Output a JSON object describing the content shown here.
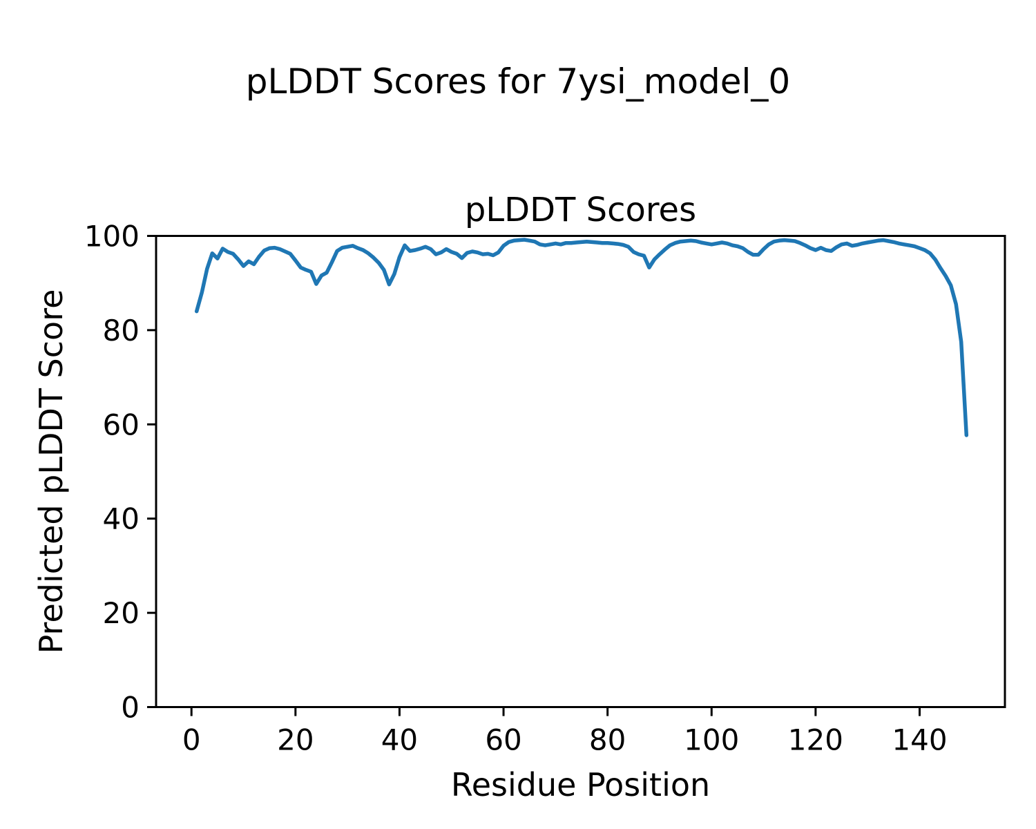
{
  "figure": {
    "suptitle": "pLDDT Scores for 7ysi_model_0",
    "background_color": "#ffffff",
    "text_color": "#000000"
  },
  "chart_data": {
    "type": "line",
    "title": "pLDDT Scores",
    "xlabel": "Residue Position",
    "ylabel": "Predicted pLDDT Score",
    "xlim": [
      -6.8,
      156.4
    ],
    "ylim": [
      0,
      100
    ],
    "xticks": [
      0,
      20,
      40,
      60,
      80,
      100,
      120,
      140
    ],
    "yticks": [
      0,
      20,
      40,
      60,
      80,
      100
    ],
    "grid": false,
    "legend_position": "none",
    "line_color": "#1f77b4",
    "line_width": 5.5,
    "series": [
      {
        "name": "pLDDT",
        "x": [
          1,
          2,
          3,
          4,
          5,
          6,
          7,
          8,
          9,
          10,
          11,
          12,
          13,
          14,
          15,
          16,
          17,
          18,
          19,
          20,
          21,
          22,
          23,
          24,
          25,
          26,
          27,
          28,
          29,
          30,
          31,
          32,
          33,
          34,
          35,
          36,
          37,
          38,
          39,
          40,
          41,
          42,
          43,
          44,
          45,
          46,
          47,
          48,
          49,
          50,
          51,
          52,
          53,
          54,
          55,
          56,
          57,
          58,
          59,
          60,
          61,
          62,
          63,
          64,
          65,
          66,
          67,
          68,
          69,
          70,
          71,
          72,
          73,
          74,
          75,
          76,
          77,
          78,
          79,
          80,
          81,
          82,
          83,
          84,
          85,
          86,
          87,
          88,
          89,
          90,
          91,
          92,
          93,
          94,
          95,
          96,
          97,
          98,
          99,
          100,
          101,
          102,
          103,
          104,
          105,
          106,
          107,
          108,
          109,
          110,
          111,
          112,
          113,
          114,
          115,
          116,
          117,
          118,
          119,
          120,
          121,
          122,
          123,
          124,
          125,
          126,
          127,
          128,
          129,
          130,
          131,
          132,
          133,
          134,
          135,
          136,
          137,
          138,
          139,
          140,
          141,
          142,
          143,
          144,
          145,
          146,
          147,
          148,
          149
        ],
        "y": [
          84.0,
          88.0,
          93.0,
          96.3,
          95.2,
          97.3,
          96.6,
          96.2,
          95.0,
          93.6,
          94.6,
          94.0,
          95.6,
          96.9,
          97.4,
          97.5,
          97.2,
          96.7,
          96.2,
          94.8,
          93.3,
          92.8,
          92.4,
          89.8,
          91.6,
          92.2,
          94.4,
          96.8,
          97.5,
          97.7,
          97.9,
          97.4,
          97.0,
          96.3,
          95.4,
          94.3,
          92.8,
          89.7,
          91.9,
          95.5,
          98.0,
          96.8,
          97.0,
          97.3,
          97.7,
          97.2,
          96.1,
          96.5,
          97.2,
          96.6,
          96.2,
          95.3,
          96.4,
          96.7,
          96.5,
          96.1,
          96.2,
          95.9,
          96.5,
          97.9,
          98.7,
          99.0,
          99.1,
          99.2,
          99.0,
          98.8,
          98.2,
          98.0,
          98.2,
          98.4,
          98.2,
          98.5,
          98.5,
          98.6,
          98.7,
          98.8,
          98.7,
          98.6,
          98.5,
          98.5,
          98.4,
          98.3,
          98.1,
          97.7,
          96.6,
          96.1,
          95.8,
          93.3,
          95.0,
          96.1,
          97.1,
          98.0,
          98.5,
          98.8,
          98.9,
          99.0,
          98.9,
          98.6,
          98.4,
          98.2,
          98.4,
          98.6,
          98.4,
          98.0,
          97.8,
          97.4,
          96.6,
          96.0,
          96.0,
          97.2,
          98.2,
          98.8,
          99.0,
          99.1,
          99.0,
          98.9,
          98.5,
          98.0,
          97.4,
          97.0,
          97.5,
          97.0,
          96.8,
          97.6,
          98.2,
          98.4,
          97.9,
          98.1,
          98.4,
          98.6,
          98.8,
          99.0,
          99.1,
          98.9,
          98.7,
          98.4,
          98.2,
          98.0,
          97.8,
          97.4,
          97.0,
          96.3,
          95.0,
          93.2,
          91.5,
          89.5,
          85.5,
          77.5,
          57.7
        ]
      }
    ]
  }
}
